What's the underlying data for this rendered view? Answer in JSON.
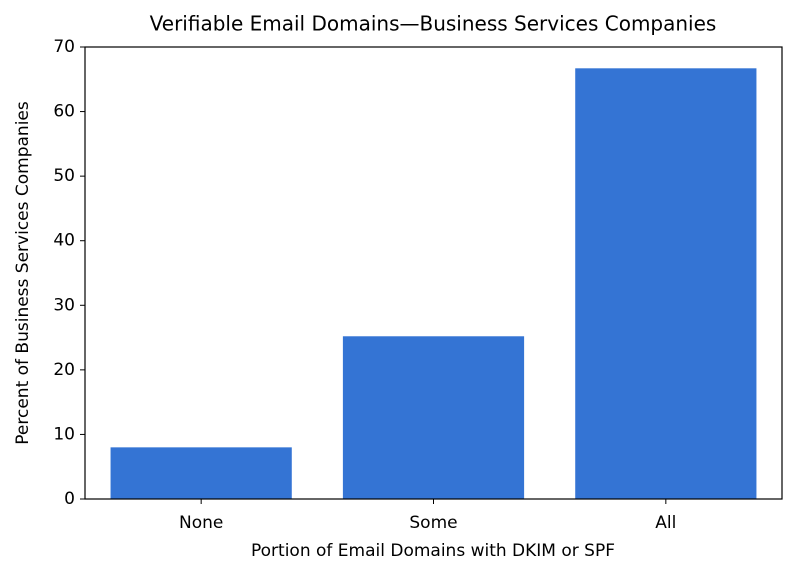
{
  "chart_data": {
    "type": "bar",
    "title": "Verifiable Email Domains—Business Services Companies",
    "x_label": "Portion of Email Domains with DKIM or SPF",
    "y_label": "Percent of Business Services Companies",
    "categories": [
      "None",
      "Some",
      "All"
    ],
    "values": [
      8.0,
      25.2,
      66.7
    ],
    "color": "#3474d4",
    "ylim": [
      0,
      70
    ],
    "yticks": [
      0,
      10,
      20,
      30,
      40,
      50,
      60,
      70
    ],
    "grid": false
  }
}
